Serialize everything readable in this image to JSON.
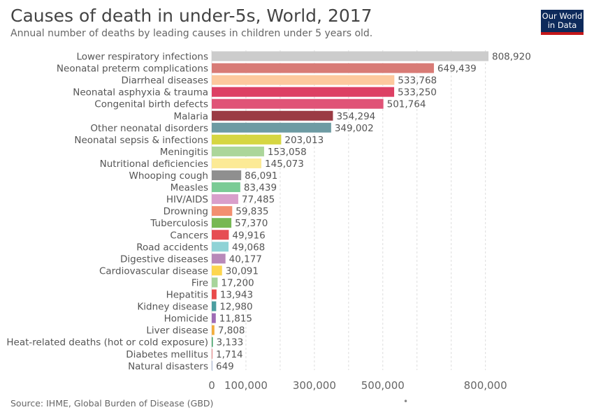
{
  "header": {
    "title": "Causes of death in under-5s, World, 2017",
    "subtitle": "Annual number of deaths by leading causes in children under 5 years old."
  },
  "logo": {
    "line1": "Our World",
    "line2": "in Data"
  },
  "footer": {
    "source": "Source: IHME, Global Burden of Disease (GBD)",
    "dot": "•"
  },
  "chart_data": {
    "type": "bar",
    "orientation": "horizontal",
    "title": "Causes of death in under-5s, World, 2017",
    "subtitle": "Annual number of deaths by leading causes in children under 5 years old.",
    "categories": [
      "Lower respiratory infections",
      "Neonatal preterm complications",
      "Diarrheal diseases",
      "Neonatal asphyxia & trauma",
      "Congenital birth defects",
      "Malaria",
      "Other neonatal disorders",
      "Neonatal sepsis & infections",
      "Meningitis",
      "Nutritional deficiencies",
      "Whooping cough",
      "Measles",
      "HIV/AIDS",
      "Drowning",
      "Tuberculosis",
      "Cancers",
      "Road accidents",
      "Digestive diseases",
      "Cardiovascular disease",
      "Fire",
      "Hepatitis",
      "Kidney disease",
      "Homicide",
      "Liver disease",
      "Heat-related deaths (hot or cold exposure)",
      "Diabetes mellitus",
      "Natural disasters"
    ],
    "values": [
      808920,
      649439,
      533768,
      533250,
      501764,
      354294,
      349002,
      203013,
      153058,
      145073,
      86091,
      83439,
      77485,
      59835,
      57370,
      49916,
      49068,
      40177,
      30091,
      17200,
      13943,
      12980,
      11815,
      7808,
      3133,
      1714,
      649
    ],
    "value_labels": [
      "808,920",
      "649,439",
      "533,768",
      "533,250",
      "501,764",
      "354,294",
      "349,002",
      "203,013",
      "153,058",
      "145,073",
      "86,091",
      "83,439",
      "77,485",
      "59,835",
      "57,370",
      "49,916",
      "49,068",
      "40,177",
      "30,091",
      "17,200",
      "13,943",
      "12,980",
      "11,815",
      "7,808",
      "3,133",
      "1,714",
      "649"
    ],
    "colors": [
      "#cccccc",
      "#d87b76",
      "#fdc99e",
      "#dd4064",
      "#e05377",
      "#9b3b44",
      "#6d9ba3",
      "#d6d642",
      "#acd69a",
      "#fcea96",
      "#8f8f8f",
      "#7acb95",
      "#d99fcb",
      "#f28f70",
      "#77b853",
      "#e64d53",
      "#8fd3d6",
      "#b889b9",
      "#fdd64e",
      "#a7d49b",
      "#e94a4a",
      "#4b9ea0",
      "#9f6bb5",
      "#f2ad3e",
      "#3f9f64",
      "#e47e7e",
      "#a5b3d0"
    ],
    "xticks": [
      0,
      100000,
      300000,
      500000,
      800000
    ],
    "xtick_labels": [
      "0",
      "100,000",
      "300,000",
      "500,000",
      "800,000"
    ],
    "xlim": [
      0,
      808920
    ],
    "grid": true,
    "xlabel": "",
    "ylabel": ""
  }
}
